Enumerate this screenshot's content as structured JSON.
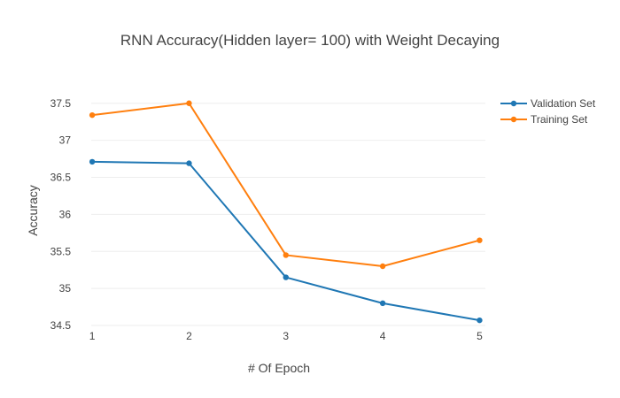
{
  "chart_data": {
    "type": "line",
    "title": "RNN Accuracy(Hidden layer= 100) with Weight Decaying",
    "xlabel": "# Of Epoch",
    "ylabel": "Accuracy",
    "x": [
      1,
      2,
      3,
      4,
      5
    ],
    "x_ticks": [
      "1",
      "2",
      "3",
      "4",
      "5"
    ],
    "y_ticks": [
      "34.5",
      "35",
      "35.5",
      "36",
      "36.5",
      "37",
      "37.5"
    ],
    "xlim": [
      0.99,
      5.06
    ],
    "ylim": [
      34.5,
      37.7
    ],
    "grid": true,
    "legend_position": "top-right",
    "series": [
      {
        "name": "Validation Set",
        "color": "#1f77b4",
        "values": [
          36.71,
          36.69,
          35.15,
          34.8,
          34.57
        ]
      },
      {
        "name": "Training Set",
        "color": "#ff7f0e",
        "values": [
          37.34,
          37.5,
          35.45,
          35.3,
          35.65
        ]
      }
    ]
  }
}
